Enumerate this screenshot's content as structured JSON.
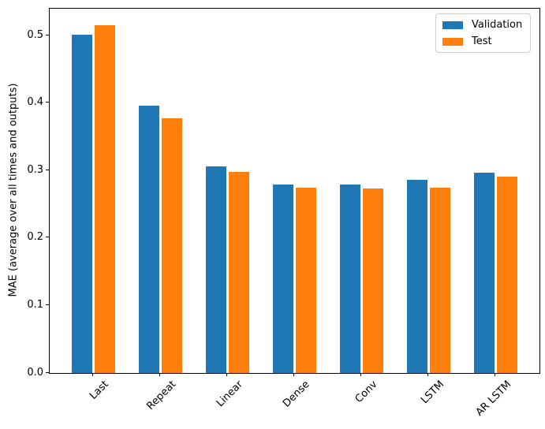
{
  "chart_data": {
    "type": "bar",
    "title": "",
    "xlabel": "",
    "ylabel": "MAE (average over all times and outputs)",
    "categories": [
      "Last",
      "Repeat",
      "Linear",
      "Dense",
      "Conv",
      "LSTM",
      "AR LSTM"
    ],
    "series": [
      {
        "name": "Validation",
        "color": "#1f77b4",
        "values": [
          0.501,
          0.396,
          0.306,
          0.279,
          0.279,
          0.286,
          0.297
        ]
      },
      {
        "name": "Test",
        "color": "#ff7f0e",
        "values": [
          0.515,
          0.377,
          0.298,
          0.275,
          0.273,
          0.275,
          0.291
        ]
      }
    ],
    "ylim": [
      0,
      0.54
    ],
    "yticks": [
      0.0,
      0.1,
      0.2,
      0.3,
      0.4,
      0.5
    ],
    "ytick_labels": [
      "0.0",
      "0.1",
      "0.2",
      "0.3",
      "0.4",
      "0.5"
    ],
    "xlim": [
      -0.652,
      6.652
    ],
    "bar_width": 0.3,
    "bar_offsets": [
      -0.17,
      0.17
    ],
    "xtick_rotation": 45,
    "grid": false,
    "legend_position": "upper right"
  }
}
